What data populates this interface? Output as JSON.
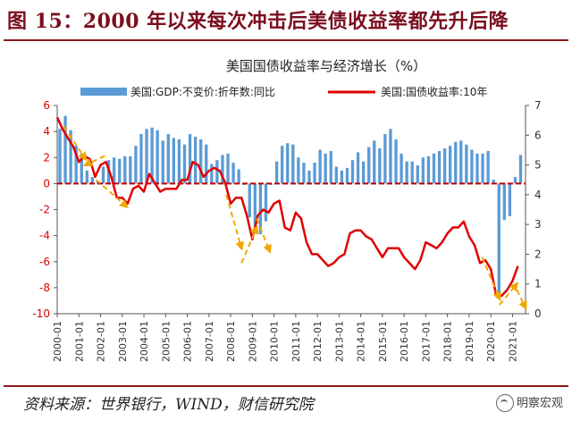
{
  "figure": {
    "title": "图 15：2000 年以来每次冲击后美债收益率都先升后降",
    "source": "资料来源：世界银行，WIND，财信研究院",
    "watermark": "明察宏观"
  },
  "chart_data": {
    "type": "bar+line",
    "title": "美国国债收益率与经济增长（%）",
    "x_tick_labels": [
      "2000-01",
      "2001-01",
      "2002-01",
      "2003-01",
      "2004-01",
      "2005-01",
      "2006-01",
      "2007-01",
      "2008-01",
      "2009-01",
      "2010-01",
      "2011-01",
      "2012-01",
      "2013-01",
      "2014-01",
      "2015-01",
      "2016-01",
      "2017-01",
      "2018-01",
      "2019-01",
      "2020-01",
      "2021-01"
    ],
    "y_left": {
      "ticks": [
        6,
        4,
        2,
        0,
        -2,
        -4,
        -6,
        -8,
        -10
      ],
      "range": [
        -10,
        6
      ],
      "color": "#e00000"
    },
    "y_right": {
      "ticks": [
        7,
        6,
        5,
        4,
        3,
        2,
        1,
        0
      ],
      "range": [
        0,
        7
      ],
      "color": "#333333"
    },
    "reference_line": {
      "y_left": 0,
      "color": "#c00000",
      "style": "dashed"
    },
    "series": [
      {
        "name": "美国:GDP:不变价:折年数:同比",
        "type": "bar",
        "axis": "left",
        "color": "#5b9bd5",
        "x": [
          2000.0,
          2000.25,
          2000.5,
          2000.75,
          2001.0,
          2001.25,
          2001.5,
          2001.75,
          2002.0,
          2002.25,
          2002.5,
          2002.75,
          2003.0,
          2003.25,
          2003.5,
          2003.75,
          2004.0,
          2004.25,
          2004.5,
          2004.75,
          2005.0,
          2005.25,
          2005.5,
          2005.75,
          2006.0,
          2006.25,
          2006.5,
          2006.75,
          2007.0,
          2007.25,
          2007.5,
          2007.75,
          2008.0,
          2008.25,
          2008.5,
          2008.75,
          2009.0,
          2009.25,
          2009.5,
          2009.75,
          2010.0,
          2010.25,
          2010.5,
          2010.75,
          2011.0,
          2011.25,
          2011.5,
          2011.75,
          2012.0,
          2012.25,
          2012.5,
          2012.75,
          2013.0,
          2013.25,
          2013.5,
          2013.75,
          2014.0,
          2014.25,
          2014.5,
          2014.75,
          2015.0,
          2015.25,
          2015.5,
          2015.75,
          2016.0,
          2016.25,
          2016.5,
          2016.75,
          2017.0,
          2017.25,
          2017.5,
          2017.75,
          2018.0,
          2018.25,
          2018.5,
          2018.75,
          2019.0,
          2019.25,
          2019.5,
          2019.75,
          2020.0,
          2020.25,
          2020.5,
          2020.75,
          2021.0,
          2021.25
        ],
        "values": [
          4.2,
          5.2,
          4.1,
          2.9,
          2.3,
          1.0,
          0.5,
          0.2,
          1.3,
          1.8,
          2.0,
          1.9,
          2.1,
          2.1,
          2.9,
          3.8,
          4.2,
          4.3,
          4.1,
          3.3,
          3.8,
          3.5,
          3.4,
          3.0,
          3.8,
          3.6,
          3.4,
          3.0,
          1.5,
          1.8,
          2.2,
          2.3,
          1.6,
          1.1,
          -0.1,
          -2.6,
          -3.3,
          -3.9,
          -2.9,
          -0.1,
          1.7,
          2.9,
          3.1,
          3.0,
          2.0,
          1.6,
          1.0,
          1.6,
          2.6,
          2.3,
          2.5,
          1.3,
          1.0,
          1.2,
          1.8,
          2.4,
          1.7,
          2.8,
          3.3,
          2.7,
          3.8,
          4.2,
          3.4,
          2.3,
          1.7,
          1.7,
          1.4,
          2.0,
          2.1,
          2.3,
          2.5,
          2.7,
          2.9,
          3.2,
          3.3,
          3.0,
          2.6,
          2.3,
          2.3,
          2.5,
          0.3,
          -8.5,
          -2.8,
          -2.5,
          0.5,
          2.2
        ]
      },
      {
        "name": "美国:国债收益率:10年",
        "type": "line",
        "axis": "right",
        "color": "#e00000",
        "x": [
          2000.0,
          2000.25,
          2000.5,
          2000.75,
          2001.0,
          2001.25,
          2001.5,
          2001.75,
          2002.0,
          2002.25,
          2002.5,
          2002.75,
          2003.0,
          2003.25,
          2003.5,
          2003.75,
          2004.0,
          2004.25,
          2004.5,
          2004.75,
          2005.0,
          2005.25,
          2005.5,
          2005.75,
          2006.0,
          2006.25,
          2006.5,
          2006.75,
          2007.0,
          2007.25,
          2007.5,
          2007.75,
          2008.0,
          2008.25,
          2008.5,
          2008.75,
          2009.0,
          2009.25,
          2009.5,
          2009.75,
          2010.0,
          2010.25,
          2010.5,
          2010.75,
          2011.0,
          2011.25,
          2011.5,
          2011.75,
          2012.0,
          2012.25,
          2012.5,
          2012.75,
          2013.0,
          2013.25,
          2013.5,
          2013.75,
          2014.0,
          2014.25,
          2014.5,
          2014.75,
          2015.0,
          2015.25,
          2015.5,
          2015.75,
          2016.0,
          2016.25,
          2016.5,
          2016.75,
          2017.0,
          2017.25,
          2017.5,
          2017.75,
          2018.0,
          2018.25,
          2018.5,
          2018.75,
          2019.0,
          2019.25,
          2019.5,
          2019.75,
          2020.0,
          2020.25,
          2020.5,
          2020.75,
          2021.0,
          2021.25
        ],
        "values": [
          6.6,
          6.2,
          5.9,
          5.6,
          5.1,
          5.3,
          5.2,
          4.6,
          5.0,
          5.1,
          4.6,
          3.9,
          3.9,
          3.7,
          4.2,
          4.3,
          4.1,
          4.7,
          4.4,
          4.1,
          4.2,
          4.2,
          4.2,
          4.5,
          4.5,
          5.1,
          5.0,
          4.6,
          4.8,
          4.9,
          4.8,
          4.4,
          3.7,
          3.9,
          3.9,
          3.3,
          2.5,
          3.3,
          3.5,
          3.4,
          3.7,
          3.8,
          2.9,
          2.8,
          3.4,
          3.2,
          2.4,
          2.0,
          2.0,
          1.8,
          1.6,
          1.7,
          1.9,
          2.0,
          2.7,
          2.8,
          2.8,
          2.6,
          2.5,
          2.2,
          1.9,
          2.2,
          2.2,
          2.2,
          1.9,
          1.7,
          1.5,
          1.8,
          2.4,
          2.3,
          2.2,
          2.4,
          2.7,
          2.9,
          2.9,
          3.1,
          2.6,
          2.3,
          1.7,
          1.8,
          1.5,
          0.6,
          0.6,
          0.8,
          1.1,
          1.6
        ]
      }
    ],
    "annotations": [
      {
        "type": "dashed-arrow",
        "color": "#f0a800",
        "from": [
          2000.3,
          6.3
        ],
        "to": [
          2001.3,
          5.2
        ]
      },
      {
        "type": "dashed-arrow",
        "color": "#f0a800",
        "from": [
          2001.8,
          4.5
        ],
        "to": [
          2003.2,
          3.6
        ]
      },
      {
        "type": "dashed-arrow",
        "color": "#f0a800",
        "from": [
          2002.2,
          5.3
        ],
        "to": [
          2001.3,
          5.0
        ]
      },
      {
        "type": "dashed-arrow",
        "color": "#f0a800",
        "from": [
          2007.8,
          4.0
        ],
        "to": [
          2008.5,
          2.2
        ]
      },
      {
        "type": "dashed-arrow",
        "color": "#f0a800",
        "from": [
          2008.5,
          1.7
        ],
        "to": [
          2009.2,
          2.9
        ]
      },
      {
        "type": "dashed-arrow",
        "color": "#f0a800",
        "from": [
          2009.2,
          3.2
        ],
        "to": [
          2009.8,
          2.1
        ]
      },
      {
        "type": "dashed-arrow",
        "color": "#f0a800",
        "from": [
          2019.6,
          1.9
        ],
        "to": [
          2020.4,
          0.5
        ]
      },
      {
        "type": "dashed-arrow",
        "color": "#f0a800",
        "from": [
          2020.4,
          0.3
        ],
        "to": [
          2021.2,
          1.0
        ]
      },
      {
        "type": "dashed-arrow",
        "color": "#f0a800",
        "from": [
          2021.2,
          0.8
        ],
        "to": [
          2021.6,
          0.2
        ]
      }
    ]
  }
}
